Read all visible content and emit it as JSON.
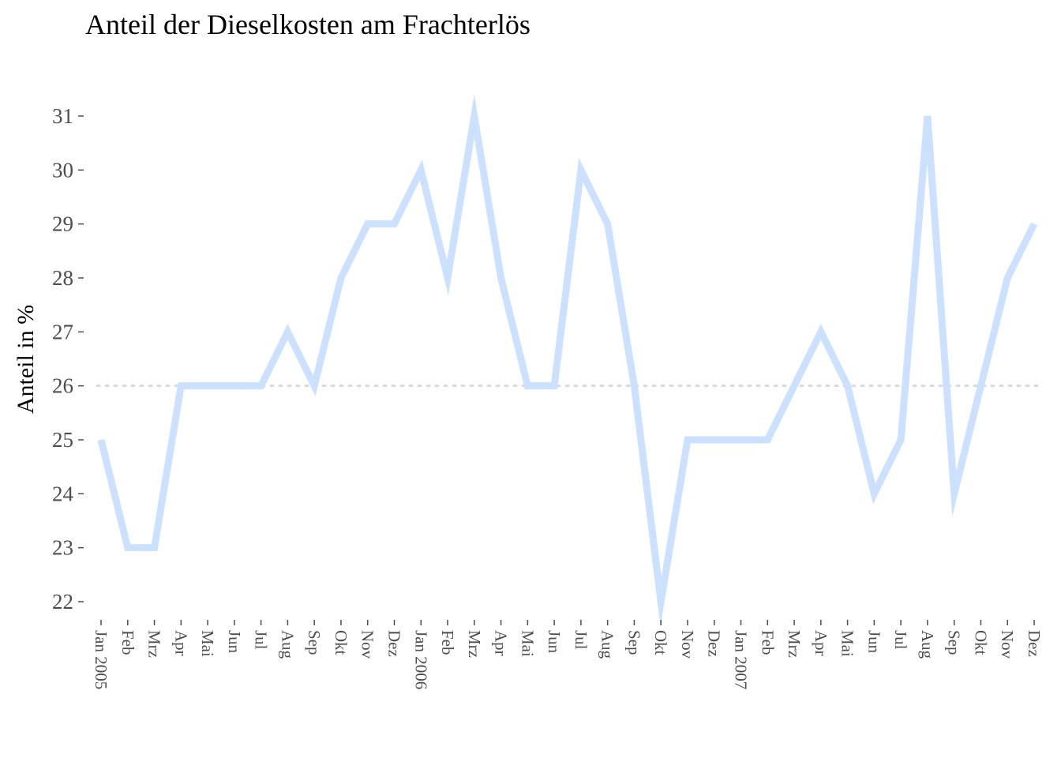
{
  "chart_data": {
    "type": "line",
    "title": "Anteil der Dieselkosten am Frachterlös",
    "xlabel": "",
    "ylabel": "Anteil in %",
    "categories": [
      "Jan 2005",
      "Feb",
      "Mrz",
      "Apr",
      "Mai",
      "Jun",
      "Jul",
      "Aug",
      "Sep",
      "Okt",
      "Nov",
      "Dez",
      "Jan 2006",
      "Feb",
      "Mrz",
      "Apr",
      "Mai",
      "Jun",
      "Jul",
      "Aug",
      "Sep",
      "Okt",
      "Nov",
      "Dez",
      "Jan 2007",
      "Feb",
      "Mrz",
      "Apr",
      "Mai",
      "Jun",
      "Jul",
      "Aug",
      "Sep",
      "Okt",
      "Nov",
      "Dez"
    ],
    "series": [
      {
        "values": [
          25,
          23,
          23,
          26,
          26,
          26,
          26,
          27,
          26,
          28,
          29,
          29,
          30,
          28,
          31,
          28,
          26,
          26,
          30,
          29,
          26,
          22,
          25,
          25,
          25,
          25,
          26,
          27,
          26,
          24,
          25,
          31,
          24,
          26,
          28,
          29
        ],
        "color": "#cce0ff"
      }
    ],
    "reference_line": {
      "value": 26,
      "style": "dotted",
      "color": "#d9d9d9"
    },
    "ylim": [
      22,
      31
    ],
    "yticks": [
      22,
      23,
      24,
      25,
      26,
      27,
      28,
      29,
      30,
      31
    ],
    "grid": false,
    "legend": "none"
  }
}
